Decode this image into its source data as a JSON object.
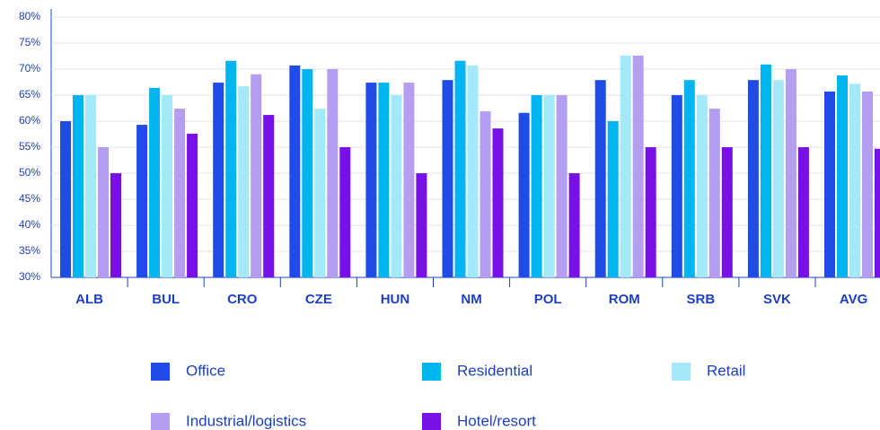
{
  "chart_data": {
    "type": "bar",
    "categories": [
      "ALB",
      "BUL",
      "CRO",
      "CZE",
      "HUN",
      "NM",
      "POL",
      "ROM",
      "SRB",
      "SVK",
      "AVG"
    ],
    "series": [
      {
        "name": "Office",
        "color": "#1f4ce8",
        "values": [
          60,
          59.3,
          67.4,
          70.7,
          67.4,
          67.9,
          61.6,
          67.9,
          65,
          67.9,
          65.7
        ]
      },
      {
        "name": "Residential",
        "color": "#00b4f0",
        "values": [
          65,
          66.4,
          71.6,
          70,
          67.4,
          71.6,
          65,
          60,
          67.9,
          70.9,
          68.8
        ]
      },
      {
        "name": "Retail",
        "color": "#a3e9fa",
        "values": [
          65,
          65,
          66.7,
          62.4,
          65,
          70.7,
          65,
          72.6,
          65,
          67.9,
          67.2
        ]
      },
      {
        "name": "Industrial/logistics",
        "color": "#b59df2",
        "values": [
          55,
          62.4,
          69,
          70,
          67.4,
          61.9,
          65,
          72.6,
          62.4,
          70,
          65.7
        ]
      },
      {
        "name": "Hotel/resort",
        "color": "#7a10e8",
        "values": [
          50,
          57.6,
          61.2,
          55,
          50,
          58.6,
          50,
          55,
          55,
          55,
          54.7
        ]
      }
    ],
    "ylim": [
      30,
      80
    ],
    "yticks": [
      {
        "value": 30,
        "label": "30%"
      },
      {
        "value": 35,
        "label": "35%"
      },
      {
        "value": 40,
        "label": "40%"
      },
      {
        "value": 45,
        "label": "45%"
      },
      {
        "value": 50,
        "label": "50%"
      },
      {
        "value": 55,
        "label": "55%"
      },
      {
        "value": 60,
        "label": "60%"
      },
      {
        "value": 65,
        "label": "65%"
      },
      {
        "value": 70,
        "label": "70%"
      },
      {
        "value": 75,
        "label": "75%"
      },
      {
        "value": 80,
        "label": "80%"
      }
    ],
    "grid": true
  }
}
